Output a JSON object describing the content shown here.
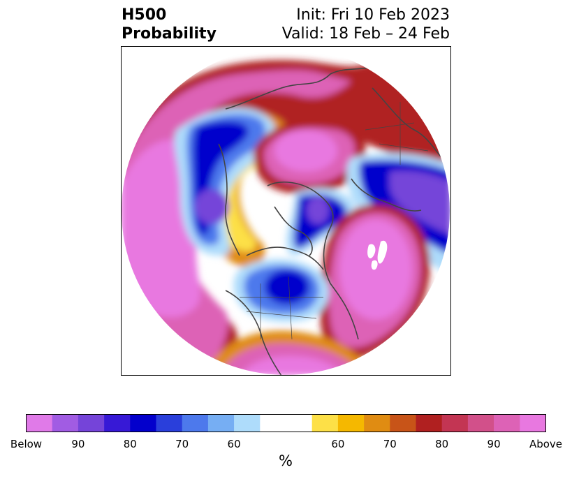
{
  "header": {
    "title_line1": "H500",
    "title_line2": "Probability",
    "init": "Init: Fri 10 Feb 2023",
    "valid": "Valid: 18 Feb – 24 Feb"
  },
  "colorbar": {
    "colors": [
      "#e07ae8",
      "#a15ce3",
      "#7544d9",
      "#3719d6",
      "#0300cc",
      "#2a3fdb",
      "#4d79ec",
      "#76aef3",
      "#aedcfb",
      "#ffffff",
      "#ffffff",
      "#fde047",
      "#f5b800",
      "#e08c12",
      "#c85418",
      "#b02020",
      "#c33553",
      "#d2508a",
      "#dd62b6",
      "#e878e0"
    ],
    "tick_labels": [
      "Below",
      "90",
      "80",
      "70",
      "60",
      "60",
      "70",
      "80",
      "90",
      "Above"
    ],
    "unit_label": "%"
  },
  "map": {
    "projection": "north-polar-stereographic",
    "palette": {
      "magenta": "#e070d8",
      "darkred": "#b02020",
      "orange": "#e08c12",
      "yellow": "#fde047",
      "lightblue": "#aedcfb",
      "blue": "#4d79ec",
      "navy": "#0300cc",
      "purple": "#7544d9",
      "coast": "#444444"
    }
  }
}
